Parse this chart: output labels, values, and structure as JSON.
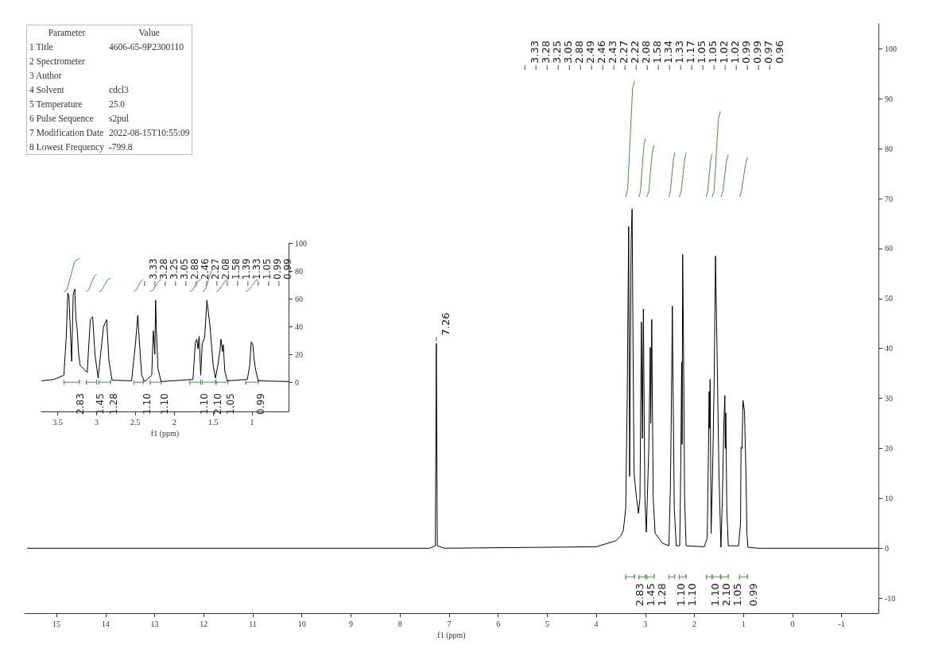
{
  "chart_data": [
    {
      "type": "other",
      "categories": [
        "Parameter",
        "Value"
      ],
      "y_categories": [
        "1 Title",
        "2 Spectrometer",
        "3 Author",
        "4 Solvent",
        "5 Temperature",
        "6 Pulse Sequence",
        "7 Modification Date",
        "8 Lowest Frequency"
      ],
      "cell_labels": [
        [
          "4606-65-9P2300110"
        ],
        [
          null
        ],
        [
          null
        ],
        [
          "cdcl3"
        ],
        [
          "25.0"
        ],
        [
          "s2pul"
        ],
        [
          "2022-08-15T10:55:09"
        ],
        [
          "-799.8"
        ]
      ]
    },
    {
      "type": "line",
      "xlabel": "f1 (ppm)",
      "xlim": [
        15.65,
        -1.75
      ],
      "xticks": [
        15,
        14,
        13,
        12,
        11,
        10,
        9,
        8,
        7,
        6,
        5,
        4,
        3,
        2,
        1,
        0,
        -1
      ],
      "ylim": [
        -13,
        105
      ],
      "yticks": [
        -10,
        0,
        10,
        20,
        30,
        40,
        50,
        60,
        70,
        80,
        90,
        100
      ],
      "series": [
        {
          "color": "#000000",
          "x": [
            15.6,
            7.4,
            7.28,
            7.26,
            7.24,
            7.1,
            4.0,
            3.6,
            3.5,
            3.45,
            3.4,
            3.37,
            3.34,
            3.32,
            3.29,
            3.27,
            3.25,
            3.23,
            3.18,
            3.14,
            3.11,
            3.08,
            3.06,
            3.04,
            3.01,
            2.98,
            2.93,
            2.9,
            2.89,
            2.87,
            2.84,
            2.8,
            2.65,
            2.52,
            2.49,
            2.47,
            2.45,
            2.43,
            2.41,
            2.37,
            2.3,
            2.28,
            2.26,
            2.25,
            2.24,
            2.22,
            2.2,
            2.17,
            1.8,
            1.74,
            1.72,
            1.7,
            1.69,
            1.68,
            1.66,
            1.63,
            1.6,
            1.57,
            1.54,
            1.5,
            1.46,
            1.43,
            1.4,
            1.38,
            1.37,
            1.36,
            1.34,
            1.31,
            1.1,
            1.06,
            1.05,
            1.03,
            1.01,
            0.98,
            0.95,
            0.93,
            0.91,
            0.7,
            -1.75
          ],
          "values": [
            0,
            0,
            0.5,
            41,
            0.5,
            0,
            0.3,
            1.5,
            2.5,
            3.5,
            8,
            30,
            64.4,
            14.4,
            61.2,
            67.9,
            39.5,
            15,
            10,
            7,
            10,
            45.3,
            22,
            47.9,
            10,
            3.2,
            20,
            40.2,
            25,
            45.8,
            10,
            3,
            1,
            0.5,
            12,
            28,
            48.5,
            27,
            8,
            0.5,
            0.5,
            15,
            37.3,
            20.8,
            58.8,
            37.9,
            10,
            0.5,
            0.3,
            2,
            15,
            31.4,
            24,
            33.8,
            3,
            15,
            32,
            58.5,
            40,
            15,
            0.2,
            10,
            25,
            30.6,
            20,
            27.1,
            8,
            0.5,
            0.5,
            5,
            20.2,
            20,
            29.6,
            27.5,
            15,
            3,
            0.2,
            0,
            0
          ]
        },
        {
          "color": "#3c9a3c",
          "x": [
            3.4,
            3.36,
            3.26,
            3.22
          ],
          "values": [
            70.3,
            72,
            92,
            93.6
          ]
        },
        {
          "color": "#3c9a3c",
          "x": [
            3.13,
            3.1,
            3.03,
            3.0
          ],
          "values": [
            70.3,
            71.5,
            80.6,
            82.1
          ]
        },
        {
          "color": "#3c9a3c",
          "x": [
            2.97,
            2.93,
            2.86,
            2.82
          ],
          "values": [
            70.3,
            71.5,
            79.2,
            80.7
          ]
        },
        {
          "color": "#3c9a3c",
          "x": [
            2.52,
            2.49,
            2.43,
            2.4
          ],
          "values": [
            70.3,
            71.5,
            77.7,
            79.2
          ]
        },
        {
          "color": "#3c9a3c",
          "x": [
            2.31,
            2.27,
            2.2,
            2.17
          ],
          "values": [
            70.3,
            71.5,
            77.7,
            79.2
          ]
        },
        {
          "color": "#3c9a3c",
          "x": [
            1.76,
            1.73,
            1.67,
            1.64
          ],
          "values": [
            70.3,
            71.5,
            77.5,
            79
          ]
        },
        {
          "color": "#3c9a3c",
          "x": [
            1.64,
            1.6,
            1.51,
            1.47
          ],
          "values": [
            70.3,
            71.5,
            86,
            87.5
          ]
        },
        {
          "color": "#3c9a3c",
          "x": [
            1.46,
            1.42,
            1.35,
            1.31
          ],
          "values": [
            70.3,
            71.5,
            77.3,
            78.8
          ]
        },
        {
          "color": "#3c9a3c",
          "x": [
            1.08,
            1.04,
            0.96,
            0.92
          ],
          "values": [
            70.3,
            71.5,
            76.8,
            78.3
          ]
        }
      ],
      "annotations": [
        {
          "text": "7.26",
          "x": 7.26,
          "y": 41
        },
        "3.33",
        "3.28",
        "3.25",
        "3.05",
        "2.88",
        "2.49",
        "2.46",
        "2.43",
        "2.27",
        "2.22",
        "2.08",
        "1.58",
        "1.34",
        "1.33",
        "1.17",
        "1.05",
        "1.05",
        "1.02",
        "1.02",
        "0.99",
        "0.99",
        "0.97",
        "0.96",
        "2.83",
        "1.45",
        "1.28",
        "1.10",
        "1.10",
        "1.10",
        "2.10",
        "1.05",
        "0.99"
      ]
    },
    {
      "type": "line",
      "xlabel": "f1 (ppm)",
      "xlim": [
        3.71,
        0.53
      ],
      "xticks": [
        3.5,
        3.0,
        2.5,
        2.0,
        1.5,
        1.0
      ],
      "ylim": [
        -21,
        100
      ],
      "yticks": [
        0,
        20,
        40,
        60,
        80,
        100
      ],
      "series": [
        {
          "color": "#000000",
          "x": [
            3.71,
            3.55,
            3.42,
            3.39,
            3.37,
            3.355,
            3.32,
            3.3,
            3.28,
            3.265,
            3.25,
            3.23,
            3.21,
            3.12,
            3.08,
            3.05,
            3.02,
            2.98,
            2.91,
            2.87,
            2.84,
            2.8,
            2.55,
            2.5,
            2.47,
            2.445,
            2.42,
            2.38,
            2.29,
            2.27,
            2.25,
            2.24,
            2.23,
            2.21,
            2.17,
            1.76,
            1.73,
            1.71,
            1.695,
            1.68,
            1.66,
            1.64,
            1.61,
            1.58,
            1.54,
            1.5,
            1.47,
            1.44,
            1.41,
            1.4,
            1.38,
            1.37,
            1.35,
            1.32,
            1.06,
            1.03,
            1.01,
            0.99,
            0.97,
            0.95,
            0.92,
            0.53
          ],
          "values": [
            1,
            2,
            5,
            32,
            64,
            62,
            15,
            63,
            67,
            45,
            39,
            20,
            12,
            7,
            45,
            47,
            20,
            3,
            40,
            45,
            15,
            1.5,
            1,
            27,
            48,
            26,
            5,
            0.5,
            5,
            37,
            20,
            59,
            38,
            10,
            0.5,
            2,
            28,
            31,
            24,
            33,
            5,
            28,
            32,
            59,
            40,
            12,
            3,
            12,
            24,
            31,
            22,
            27,
            8,
            1,
            2,
            12,
            29,
            27,
            15,
            8,
            1,
            0.5
          ]
        },
        {
          "color": "#3c9a3c",
          "x": [
            3.42,
            3.38,
            3.28,
            3.22
          ],
          "values": [
            65,
            66.5,
            87,
            89
          ]
        },
        {
          "color": "#3c9a3c",
          "x": [
            3.13,
            3.1,
            3.03,
            3.0
          ],
          "values": [
            65,
            66.5,
            76,
            77.7
          ]
        },
        {
          "color": "#3c9a3c",
          "x": [
            2.97,
            2.93,
            2.86,
            2.82
          ],
          "values": [
            65,
            66.5,
            73.5,
            75
          ]
        },
        {
          "color": "#3c9a3c",
          "x": [
            2.52,
            2.49,
            2.43,
            2.4
          ],
          "values": [
            65,
            66.5,
            72.5,
            74
          ]
        },
        {
          "color": "#3c9a3c",
          "x": [
            2.31,
            2.27,
            2.2,
            2.17
          ],
          "values": [
            65,
            66.5,
            72.5,
            74
          ]
        },
        {
          "color": "#3c9a3c",
          "x": [
            1.8,
            1.76,
            1.7,
            1.66
          ],
          "values": [
            65,
            66.5,
            72.5,
            74
          ]
        },
        {
          "color": "#3c9a3c",
          "x": [
            1.64,
            1.6,
            1.52,
            1.47
          ],
          "values": [
            65,
            66.5,
            80.5,
            82
          ]
        },
        {
          "color": "#3c9a3c",
          "x": [
            1.46,
            1.42,
            1.35,
            1.31
          ],
          "values": [
            65,
            66.5,
            72.5,
            74
          ]
        },
        {
          "color": "#3c9a3c",
          "x": [
            1.08,
            1.04,
            0.96,
            0.92
          ],
          "values": [
            65,
            66.5,
            72.5,
            74
          ]
        }
      ],
      "annotations": [
        "3.33",
        "3.28",
        "3.25",
        "3.05",
        "2.88",
        "2.46",
        "2.27",
        "2.08",
        "1.58",
        "1.39",
        "1.33",
        "1.05",
        "0.99",
        "0.99",
        "2.83",
        "1.45",
        "1.28",
        "1.10",
        "1.10",
        "1.10",
        "2.10",
        "1.05",
        "0.99"
      ]
    }
  ]
}
